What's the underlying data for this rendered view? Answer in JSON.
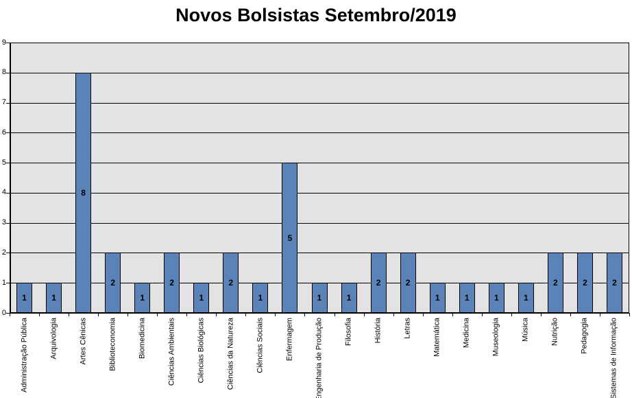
{
  "chart_data": {
    "type": "bar",
    "title": "Novos Bolsistas Setembro/2019",
    "categories": [
      "Administração Pública",
      "Arquivologia",
      "Artes Cênicas",
      "Biblioteconomia",
      "Biomedicina",
      "Ciências Ambientais",
      "Ciências Biológicas",
      "Ciências da Natureza",
      "Ciências Sociais",
      "Enfermagem",
      "Engenharia de Produção",
      "Filosofia",
      "História",
      "Letras",
      "Matemática",
      "Medicina",
      "Museologia",
      "Música",
      "Nutrição",
      "Pedagogia",
      "Sistemas de Informação"
    ],
    "values": [
      1,
      1,
      8,
      2,
      1,
      2,
      1,
      2,
      1,
      5,
      1,
      1,
      2,
      2,
      1,
      1,
      1,
      1,
      2,
      2,
      2
    ],
    "xlabel": "",
    "ylabel": "",
    "ylim": [
      0,
      9
    ],
    "y_ticks": [
      0,
      1,
      2,
      3,
      4,
      5,
      6,
      7,
      8,
      9
    ],
    "grid": true,
    "legend_position": "none",
    "data_label_position": "center",
    "colors": {
      "bar_fill": "#5B83B8",
      "bar_border": "#000000",
      "plot_background": "#E3E3E3",
      "gridline": "#000000",
      "axis": "#000000",
      "text": "#000000",
      "page_background": "#FFFFFF"
    }
  }
}
